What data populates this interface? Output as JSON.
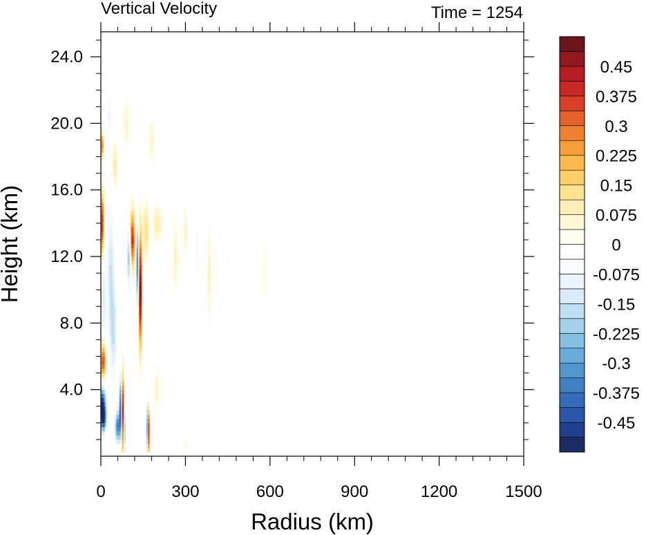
{
  "chart_data": {
    "type": "heatmap",
    "title_left": "Vertical Velocity",
    "title_right": "Time = 1254",
    "xlabel": "Radius (km)",
    "ylabel": "Height (km)",
    "xlim": [
      0,
      1500
    ],
    "ylim": [
      0,
      25.5
    ],
    "x_ticks": [
      0,
      300,
      600,
      900,
      1200,
      1500
    ],
    "x_tick_labels": [
      "0",
      "300",
      "600",
      "900",
      "1200",
      "1500"
    ],
    "y_ticks": [
      4,
      8,
      12,
      16,
      20,
      24
    ],
    "y_tick_labels": [
      "4.0",
      "8.0",
      "12.0",
      "16.0",
      "20.0",
      "24.0"
    ],
    "colorbar": {
      "min": -0.525,
      "max": 0.525,
      "step": 0.0375,
      "labels": [
        "0.45",
        "0.375",
        "0.3",
        "0.225",
        "0.15",
        "0.075",
        "0",
        "-0.075",
        "-0.15",
        "-0.225",
        "-0.3",
        "-0.375",
        "-0.45"
      ],
      "label_values": [
        0.45,
        0.375,
        0.3,
        0.225,
        0.15,
        0.075,
        0,
        -0.075,
        -0.15,
        -0.225,
        -0.3,
        -0.375,
        -0.45
      ],
      "colors": [
        "#1b2b63",
        "#22408e",
        "#2b57a8",
        "#346cb8",
        "#3f82c4",
        "#5098cf",
        "#69acda",
        "#86c0e3",
        "#a3d1eb",
        "#bfdff2",
        "#d8ebf7",
        "#ebf4fb",
        "#f8fbfe",
        "#ffffff",
        "#fffdf0",
        "#fff6d3",
        "#ffeeb3",
        "#fee28f",
        "#fdcf6a",
        "#fcb84b",
        "#f89e38",
        "#f08130",
        "#e4612b",
        "#d74126",
        "#c92923",
        "#b61d22",
        "#8f1a1e",
        "#6b1419"
      ]
    },
    "features": [
      {
        "r": 5,
        "z": 3.0,
        "w": -0.52,
        "dr": 12,
        "dz": 1.1
      },
      {
        "r": 10,
        "z": 2.2,
        "w": -0.3,
        "dr": 10,
        "dz": 0.7
      },
      {
        "r": 60,
        "z": 1.8,
        "w": -0.35,
        "dr": 10,
        "dz": 0.9
      },
      {
        "r": 78,
        "z": 2.5,
        "w": 0.55,
        "dr": 4,
        "dz": 2.2
      },
      {
        "r": 70,
        "z": 3.0,
        "w": -0.4,
        "dr": 5,
        "dz": 1.6
      },
      {
        "r": 84,
        "z": 1.5,
        "w": -0.25,
        "dr": 5,
        "dz": 1.3
      },
      {
        "r": 165,
        "z": 1.7,
        "w": -0.4,
        "dr": 3,
        "dz": 1.4
      },
      {
        "r": 170,
        "z": 1.5,
        "w": 0.5,
        "dr": 3,
        "dz": 1.3
      },
      {
        "r": 140,
        "z": 10.0,
        "w": 0.55,
        "dr": 6,
        "dz": 3.2
      },
      {
        "r": 130,
        "z": 11.5,
        "w": -0.4,
        "dr": 5,
        "dz": 2.2
      },
      {
        "r": 112,
        "z": 13.0,
        "w": 0.4,
        "dr": 9,
        "dz": 1.6
      },
      {
        "r": 100,
        "z": 12.0,
        "w": -0.25,
        "dr": 7,
        "dz": 1.6
      },
      {
        "r": 160,
        "z": 13.5,
        "w": 0.15,
        "dr": 10,
        "dz": 1.5
      },
      {
        "r": 5,
        "z": 14.0,
        "w": 0.4,
        "dr": 6,
        "dz": 1.8
      },
      {
        "r": 5,
        "z": 18.7,
        "w": 0.3,
        "dr": 5,
        "dz": 0.7
      },
      {
        "r": 10,
        "z": 9.5,
        "w": -0.12,
        "dr": 10,
        "dz": 2.2
      },
      {
        "r": 35,
        "z": 11.0,
        "w": -0.15,
        "dr": 12,
        "dz": 3.5
      },
      {
        "r": 8,
        "z": 5.7,
        "w": 0.35,
        "dr": 10,
        "dz": 1.0
      },
      {
        "r": 45,
        "z": 7.5,
        "w": -0.15,
        "dr": 12,
        "dz": 2.5
      },
      {
        "r": 50,
        "z": 17.5,
        "w": 0.12,
        "dr": 8,
        "dz": 1.2
      },
      {
        "r": 30,
        "z": 20.5,
        "w": -0.08,
        "dr": 10,
        "dz": 1.2
      },
      {
        "r": 90,
        "z": 20.0,
        "w": 0.06,
        "dr": 12,
        "dz": 1.5
      },
      {
        "r": 180,
        "z": 19.0,
        "w": 0.07,
        "dr": 10,
        "dz": 1.2
      },
      {
        "r": 200,
        "z": 14.0,
        "w": 0.1,
        "dr": 15,
        "dz": 1.0
      },
      {
        "r": 265,
        "z": 12.0,
        "w": 0.08,
        "dr": 8,
        "dz": 2.0
      },
      {
        "r": 300,
        "z": 13.5,
        "w": 0.06,
        "dr": 8,
        "dz": 1.5
      },
      {
        "r": 340,
        "z": 12.5,
        "w": -0.06,
        "dr": 8,
        "dz": 2.0
      },
      {
        "r": 385,
        "z": 11.0,
        "w": 0.09,
        "dr": 6,
        "dz": 2.5
      },
      {
        "r": 450,
        "z": 12.0,
        "w": -0.04,
        "dr": 10,
        "dz": 2.0
      },
      {
        "r": 580,
        "z": 11.0,
        "w": 0.04,
        "dr": 10,
        "dz": 2.0
      },
      {
        "r": 200,
        "z": 4.0,
        "w": 0.05,
        "dr": 15,
        "dz": 1.5
      },
      {
        "r": 300,
        "z": 0.6,
        "w": 0.04,
        "dr": 10,
        "dz": 0.4
      },
      {
        "r": 420,
        "z": 0.5,
        "w": -0.04,
        "dr": 10,
        "dz": 0.4
      },
      {
        "r": 600,
        "z": 0.4,
        "w": 0.03,
        "dr": 10,
        "dz": 0.3
      }
    ]
  }
}
